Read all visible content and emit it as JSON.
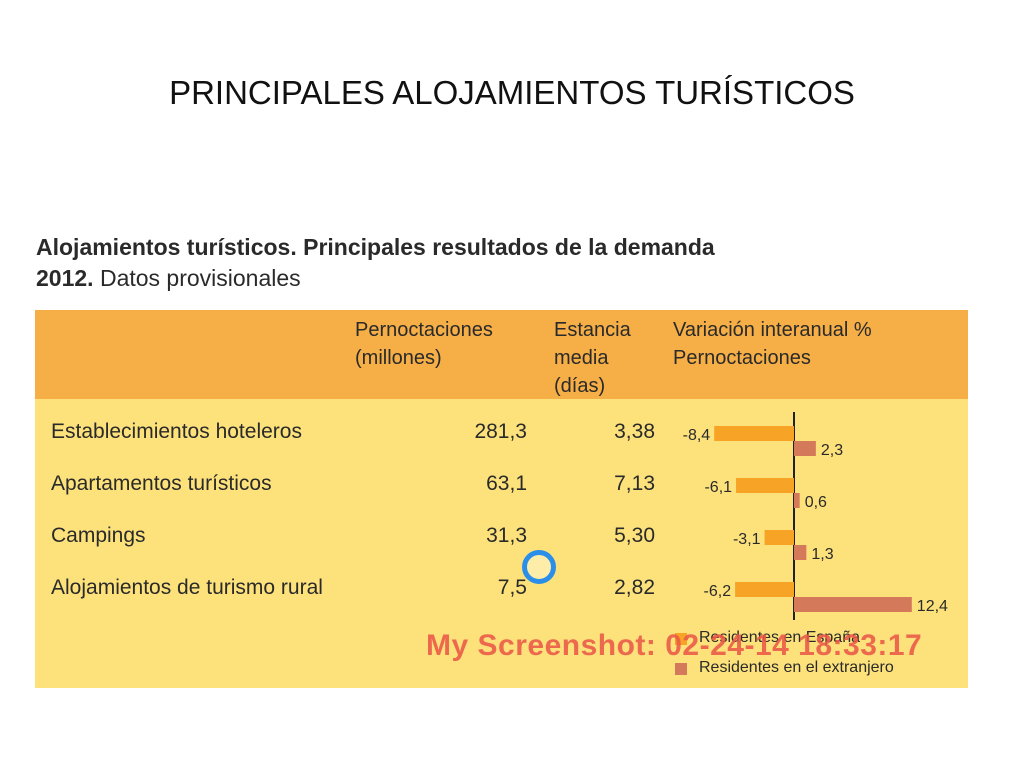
{
  "slide_title": "PRINCIPALES ALOJAMIENTOS TURÍSTICOS",
  "figure": {
    "title_bold": "Alojamientos turísticos. Principales resultados de la demanda",
    "subtitle_bold": "2012.",
    "subtitle_normal": "Datos provisionales"
  },
  "table": {
    "headers": {
      "pernoctaciones": "Pernoctaciones\n(millones)",
      "estancia": "Estancia\nmedia\n(días)",
      "variacion": "Variación interanual %\nPernoctaciones"
    },
    "rows": [
      {
        "label": "Establecimientos hoteleros",
        "pernoctaciones": "281,3",
        "estancia": "3,38"
      },
      {
        "label": "Apartamentos turísticos",
        "pernoctaciones": "63,1",
        "estancia": "7,13"
      },
      {
        "label": "Campings",
        "pernoctaciones": "31,3",
        "estancia": "5,30"
      },
      {
        "label": "Alojamientos de turismo rural",
        "pernoctaciones": "7,5",
        "estancia": "2,82"
      }
    ]
  },
  "chart_data": {
    "type": "bar",
    "orientation": "horizontal",
    "categories": [
      "Establecimientos hoteleros",
      "Apartamentos turísticos",
      "Campings",
      "Alojamientos de turismo rural"
    ],
    "series": [
      {
        "name": "Residentes en España",
        "values": [
          -8.4,
          -6.1,
          -3.1,
          -6.2
        ],
        "labels": [
          "-8,4",
          "-6,1",
          "-3,1",
          "-6,2"
        ],
        "color": "#f7a326"
      },
      {
        "name": "Residentes en el extranjero",
        "values": [
          2.3,
          0.6,
          1.3,
          12.4
        ],
        "labels": [
          "2,3",
          "0,6",
          "1,3",
          "12,4"
        ],
        "color": "#d47a5a"
      }
    ],
    "xlim": [
      -8.4,
      12.4
    ],
    "legend": "bottom"
  },
  "overlay": {
    "watermark": "My Screenshot: 02-24-14 18:33:17"
  },
  "colors": {
    "header_band": "#f6ae46",
    "table_background": "#fde27c"
  }
}
